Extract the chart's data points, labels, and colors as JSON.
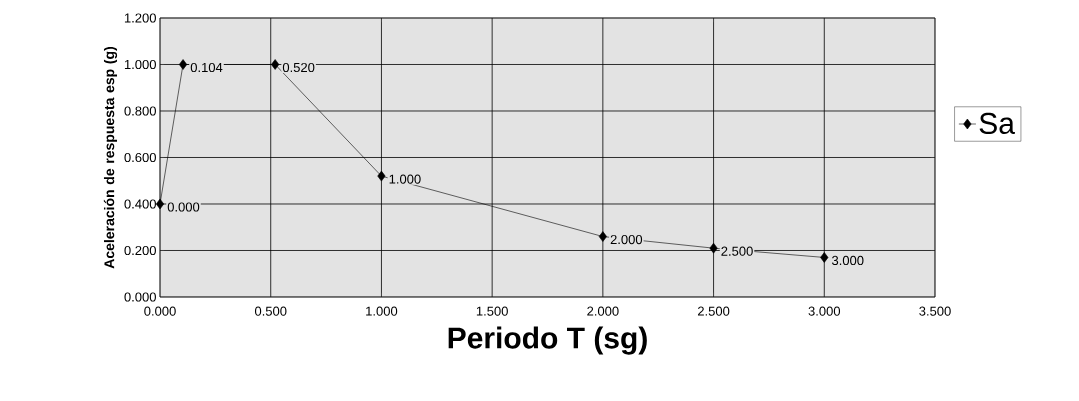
{
  "chart_data": {
    "type": "line",
    "xlabel": "Periodo T (sg)",
    "ylabel": "Aceleración de respuesta esp (g)",
    "x": [
      0,
      0.104,
      0.52,
      1.0,
      2.0,
      2.5,
      3.0
    ],
    "series": [
      {
        "name": "Sa",
        "color": "#000000",
        "values": [
          0.4,
          1.0,
          1.0,
          0.52,
          0.26,
          0.21,
          0.17
        ]
      }
    ],
    "annotations": [
      {
        "text": "0.000",
        "x": 0,
        "y": 0.4
      },
      {
        "text": "0.104",
        "x": 0.104,
        "y": 1.0
      },
      {
        "text": "0.520",
        "x": 0.52,
        "y": 1.0
      },
      {
        "text": "1.000",
        "x": 1.0,
        "y": 0.52
      },
      {
        "text": "2.000",
        "x": 2.0,
        "y": 0.26
      },
      {
        "text": "2.500",
        "x": 2.5,
        "y": 0.21
      },
      {
        "text": "3.000",
        "x": 3.0,
        "y": 0.17
      }
    ],
    "xlim": [
      0,
      3.5
    ],
    "ylim": [
      0,
      1.2
    ],
    "xticks": [
      {
        "value": 0,
        "label": "0.000"
      },
      {
        "value": 0.5,
        "label": "0.500"
      },
      {
        "value": 1,
        "label": "1.000"
      },
      {
        "value": 1.5,
        "label": "1.500"
      },
      {
        "value": 2,
        "label": "2.000"
      },
      {
        "value": 2.5,
        "label": "2.500"
      },
      {
        "value": 3,
        "label": "3.000"
      },
      {
        "value": 3.5,
        "label": "3.500"
      }
    ],
    "yticks": [
      {
        "value": 0,
        "label": "0.000"
      },
      {
        "value": 0.2,
        "label": "0.200"
      },
      {
        "value": 0.4,
        "label": "0.400"
      },
      {
        "value": 0.6,
        "label": "0.600"
      },
      {
        "value": 0.8,
        "label": "0.800"
      },
      {
        "value": 1.0,
        "label": "1.000"
      },
      {
        "value": 1.2,
        "label": "1.200"
      }
    ],
    "grid": true,
    "legend": "right",
    "marker": "diamond",
    "line_style": "solid"
  }
}
